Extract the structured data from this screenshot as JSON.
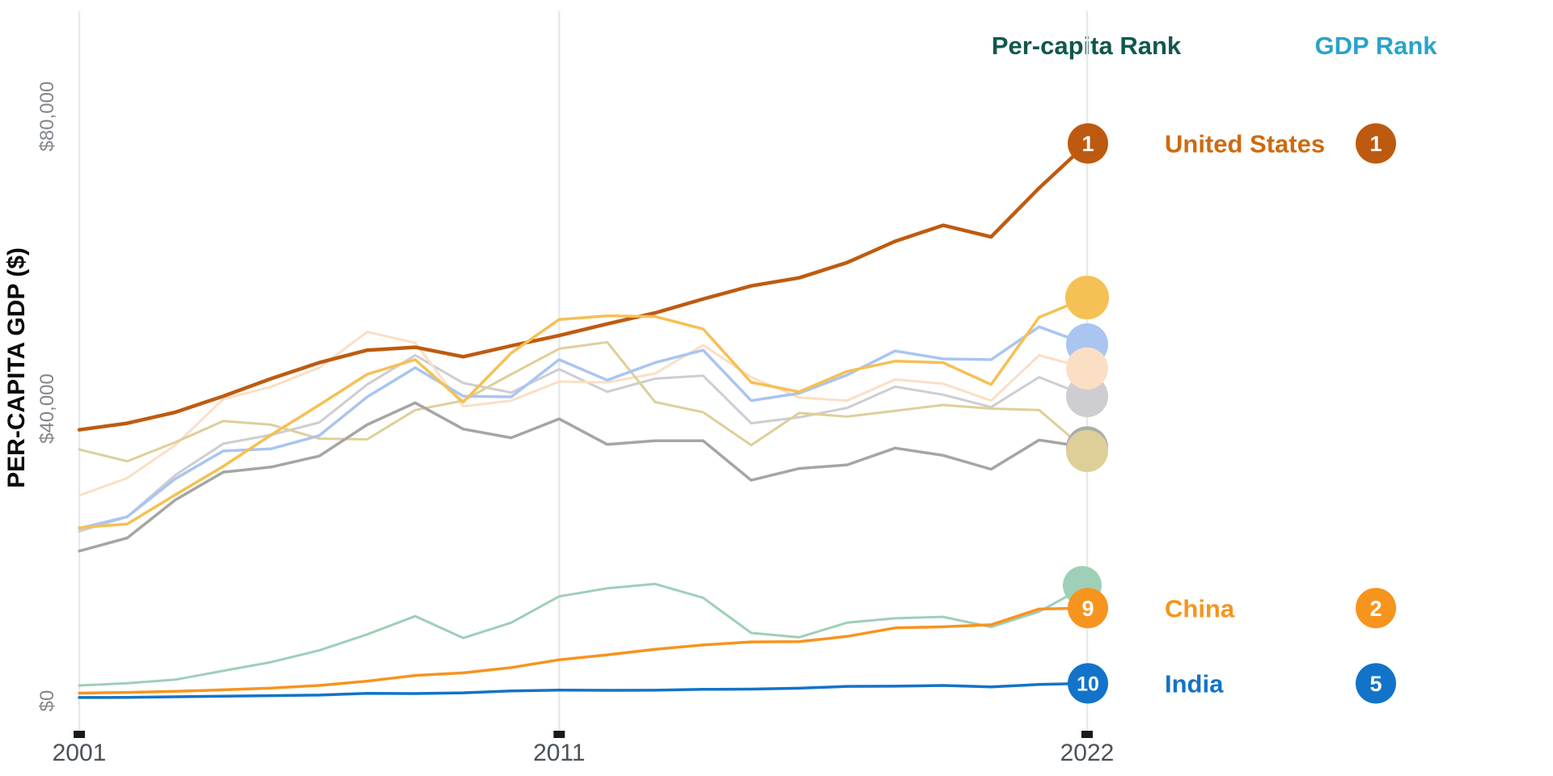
{
  "legend_headers": {
    "percapita": {
      "label": "Per-capita Rank",
      "color": "#12584C"
    },
    "gdp": {
      "label": "GDP Rank",
      "color": "#2BA3C9"
    }
  },
  "chart_data": {
    "type": "line",
    "title": "",
    "ylabel": "PER-CAPITA GDP ($)",
    "xlabel": "",
    "x_range": [
      2001,
      2022
    ],
    "ylim": [
      0,
      94000
    ],
    "grid": "vertical-only",
    "grid_color": "#E9E9E9",
    "tick_mark_color": "#1a1a1a",
    "x_tick_label_color": "#4A525A",
    "y_tick_label_color": "#80868C",
    "x_years": [
      2001,
      2002,
      2003,
      2004,
      2005,
      2006,
      2007,
      2008,
      2009,
      2010,
      2011,
      2012,
      2013,
      2014,
      2015,
      2016,
      2017,
      2018,
      2019,
      2020,
      2021,
      2022
    ],
    "x_ticks": [
      {
        "year": 2001,
        "label": "2001"
      },
      {
        "year": 2011,
        "label": "2011"
      },
      {
        "year": 2022,
        "label": "2022"
      }
    ],
    "y_ticks": [
      {
        "value": 0,
        "label": "$0"
      },
      {
        "value": 40000,
        "label": "$40,000"
      },
      {
        "value": 80000,
        "label": "$80,000"
      }
    ],
    "series": [
      {
        "id": "s1",
        "label": "",
        "color": "#CDCDD2",
        "line_width": 3,
        "marker_r": 26,
        "values": [
          23200,
          25200,
          30900,
          35200,
          36400,
          38100,
          43300,
          47300,
          43500,
          42200,
          45400,
          42300,
          44100,
          44500,
          38000,
          38800,
          40100,
          43000,
          41900,
          40200,
          44300,
          41700
        ]
      },
      {
        "id": "s2",
        "label": "",
        "color": "#FADFC5",
        "line_width": 3,
        "marker_r": 26,
        "values": [
          28100,
          30500,
          35000,
          41300,
          43000,
          45600,
          50500,
          49000,
          40300,
          41100,
          43700,
          43600,
          44800,
          48700,
          44300,
          41500,
          41100,
          44000,
          43400,
          41100,
          47300,
          45500
        ]
      },
      {
        "id": "s3",
        "label": "",
        "color": "#DECF99",
        "line_width": 3,
        "marker_r": 26,
        "values": [
          34400,
          32800,
          35400,
          38300,
          37800,
          35900,
          35800,
          39800,
          41100,
          44700,
          48200,
          49100,
          40900,
          39500,
          35000,
          39400,
          38900,
          39700,
          40500,
          40000,
          39800,
          34200
        ]
      },
      {
        "id": "s4",
        "label": "",
        "color": "#A5A5A5",
        "line_width": 3.5,
        "marker_r": 26,
        "marker_color": "#ACACAC",
        "values": [
          20500,
          22300,
          27500,
          31300,
          32000,
          33500,
          37800,
          40800,
          37200,
          36000,
          38600,
          35100,
          35600,
          35600,
          30200,
          31800,
          32300,
          34600,
          33600,
          31700,
          35700,
          34700
        ]
      },
      {
        "id": "s5",
        "label": "",
        "color": "#A9C5F0",
        "line_width": 3.5,
        "marker_r": 26,
        "values": [
          23600,
          25200,
          30400,
          34200,
          34500,
          36300,
          41600,
          45600,
          41700,
          41600,
          46700,
          43900,
          46300,
          48000,
          41100,
          42100,
          44600,
          47900,
          46800,
          46700,
          51200,
          48800
        ]
      },
      {
        "id": "s6",
        "label": "United States",
        "color": "#BE5B10",
        "line_width": 4.5,
        "values": [
          37100,
          38000,
          39500,
          41700,
          44100,
          46300,
          48000,
          48400,
          47100,
          48600,
          50000,
          51600,
          53100,
          55000,
          56800,
          57900,
          60000,
          62900,
          65100,
          63500,
          70200,
          76300
        ]
      },
      {
        "id": "s7",
        "label": "",
        "color": "#F5C054",
        "line_width": 3.5,
        "marker_r": 27,
        "values": [
          23700,
          24200,
          28200,
          32100,
          36400,
          40500,
          44700,
          46700,
          40900,
          47600,
          52200,
          52700,
          52600,
          50900,
          43600,
          42300,
          45100,
          46500,
          46300,
          43300,
          52500,
          55200
        ]
      },
      {
        "id": "s8",
        "label": "",
        "color": "#9FCFB7",
        "line_width": 3,
        "marker_r": 24,
        "marker_dx": -6,
        "values": [
          2100,
          2400,
          2900,
          4100,
          5300,
          6900,
          9100,
          11600,
          8600,
          10700,
          14300,
          15400,
          16000,
          14100,
          9300,
          8700,
          10700,
          11300,
          11500,
          10100,
          12200,
          15800
        ]
      },
      {
        "id": "s9",
        "label": "China",
        "color": "#F7941E",
        "line_width": 3.5,
        "values": [
          1050,
          1150,
          1290,
          1510,
          1750,
          2100,
          2700,
          3470,
          3830,
          4550,
          5620,
          6300,
          7050,
          7650,
          8070,
          8100,
          8820,
          9980,
          10140,
          10410,
          12570,
          12700
        ]
      },
      {
        "id": "s10",
        "label": "India",
        "color": "#1273C9",
        "line_width": 3.5,
        "values": [
          450,
          470,
          550,
          630,
          710,
          790,
          1020,
          1000,
          1100,
          1350,
          1460,
          1440,
          1450,
          1570,
          1600,
          1730,
          1980,
          2000,
          2100,
          1910,
          2240,
          2390
        ]
      }
    ],
    "marker_order": [
      "s4",
      "s3",
      "s5",
      "s1",
      "s2",
      "s7",
      "s8"
    ],
    "ranked": [
      {
        "series": "s6",
        "label": "United States",
        "label_color": "#CE6A10",
        "badge_color": "#BD5A0F",
        "percapita_rank": "1",
        "gdp_rank": "1"
      },
      {
        "series": "s9",
        "label": "China",
        "label_color": "#F7941E",
        "badge_color": "#F7941E",
        "percapita_rank": "9",
        "gdp_rank": "2"
      },
      {
        "series": "s10",
        "label": "India",
        "label_color": "#1273C9",
        "badge_color": "#1273C9",
        "percapita_rank": "10",
        "gdp_rank": "5"
      }
    ]
  }
}
